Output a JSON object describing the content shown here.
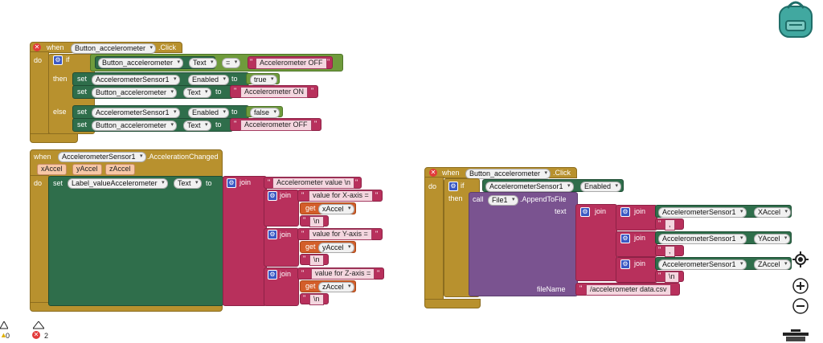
{
  "kw": {
    "when": "when",
    "do": "do",
    "if": "if",
    "then": "then",
    "else": "else",
    "set": "set",
    "to": "to",
    "join": "join",
    "get": "get",
    "call": "call",
    "text": "text",
    "fileName": "fileName",
    "eq": "="
  },
  "b1": {
    "comp": "Button_accelerometer",
    "event": ".Click",
    "prop_text": "Text",
    "val_off": "Accelerometer OFF",
    "val_on": "Accelerometer ON",
    "sensor": "AccelerometerSensor1",
    "prop_enabled": "Enabled",
    "true": "true",
    "false": "false"
  },
  "b2": {
    "comp": "AccelerometerSensor1",
    "event": ".AccelerationChanged",
    "params": [
      "xAccel",
      "yAccel",
      "zAccel"
    ],
    "label": "Label_valueAccelerometer",
    "prop_text": "Text",
    "s_head": "Accelerometer value \\n",
    "s_x": "value for X-axis = ",
    "s_y": "value for Y-axis = ",
    "s_z": "value for Z-axis = ",
    "nl": "\\n"
  },
  "b3": {
    "comp": "Button_accelerometer",
    "event": ".Click",
    "sensor": "AccelerometerSensor1",
    "prop_enabled": "Enabled",
    "file": "File1",
    "method": ".AppendToFile",
    "xacc": "XAccel",
    "yacc": "YAccel",
    "zacc": "ZAccel",
    "comma": ",",
    "nl": "\\n",
    "fname": "/accelerometer data.csv"
  },
  "status": {
    "warnings": "0",
    "errors": "2"
  },
  "colors": {
    "control": "#b8912e",
    "component": "#2f6e4b",
    "text": "#b8305c",
    "variable": "#d35e2a",
    "procedure": "#7a5390",
    "logic": "#6f9b3c"
  }
}
